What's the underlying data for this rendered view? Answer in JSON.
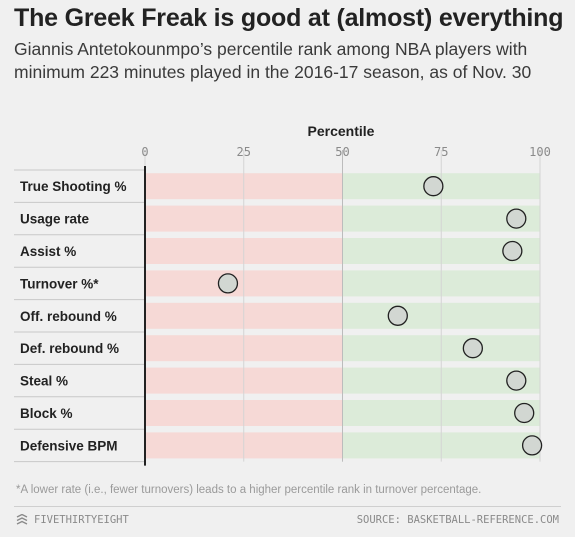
{
  "header": {
    "title": "The Greek Freak is good at (almost) everything",
    "subtitle": "Giannis Antetokounmpo’s percentile rank among NBA players with minimum 223 minutes played in the 2016-17 season, as of Nov. 30"
  },
  "chart_data": {
    "type": "scatter",
    "title": "The Greek Freak is good at (almost) everything",
    "xlabel": "Percentile",
    "ylabel": "",
    "xlim": [
      0,
      100
    ],
    "xticks": [
      "0",
      "25",
      "50",
      "75",
      "100"
    ],
    "grid": true,
    "categories": [
      "True Shooting %",
      "Usage rate",
      "Assist %",
      "Turnover %*",
      "Off. rebound %",
      "Def. rebound %",
      "Steal %",
      "Block %",
      "Defensive BPM"
    ],
    "values": [
      73,
      94,
      93,
      21,
      64,
      83,
      94,
      96,
      98
    ]
  },
  "colors": {
    "background": "#f0f0f0",
    "below_median_band": "#f6d9d6",
    "above_median_band": "#dcebd9",
    "marker_fill": "#d2d7d2",
    "marker_stroke": "#222222"
  },
  "footnote": "*A lower rate (i.e., fewer turnovers) leads to a higher percentile rank in turnover percentage.",
  "footer": {
    "brand_icon": "fivethirtyeight-logo-icon",
    "brand": "FIVETHIRTYEIGHT",
    "source": "SOURCE: BASKETBALL-REFERENCE.COM"
  }
}
